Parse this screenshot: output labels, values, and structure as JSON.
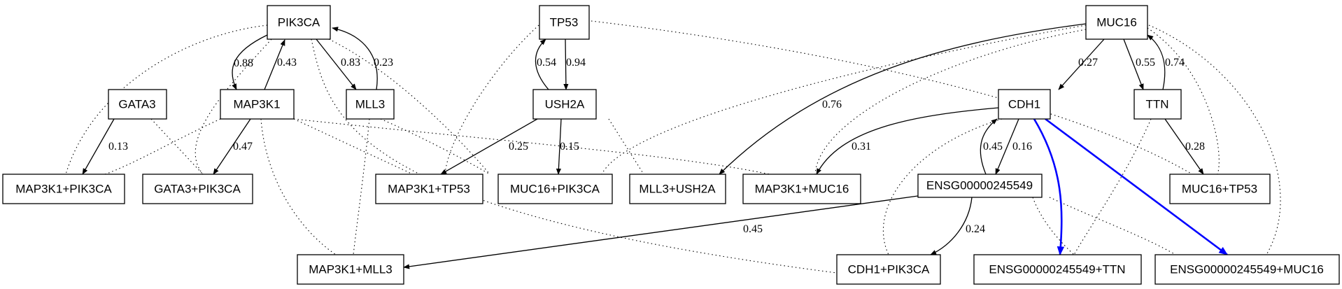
{
  "colors": {
    "highlight": "#0000ff",
    "default": "#000000"
  },
  "nodes": {
    "pik3ca": "PIK3CA",
    "tp53": "TP53",
    "muc16": "MUC16",
    "gata3": "GATA3",
    "map3k1": "MAP3K1",
    "mll3": "MLL3",
    "ush2a": "USH2A",
    "cdh1": "CDH1",
    "ttn": "TTN",
    "map3k1_pik3ca": "MAP3K1+PIK3CA",
    "gata3_pik3ca": "GATA3+PIK3CA",
    "map3k1_tp53": "MAP3K1+TP53",
    "muc16_pik3ca": "MUC16+PIK3CA",
    "mll3_ush2a": "MLL3+USH2A",
    "map3k1_muc16": "MAP3K1+MUC16",
    "ensg": "ENSG00000245549",
    "muc16_tp53": "MUC16+TP53",
    "map3k1_mll3": "MAP3K1+MLL3",
    "cdh1_pik3ca": "CDH1+PIK3CA",
    "ensg_ttn": "ENSG00000245549+TTN",
    "ensg_muc16": "ENSG00000245549+MUC16"
  },
  "edges": {
    "pik3ca_map3k1": "0.88",
    "map3k1_pik3ca": "0.43",
    "pik3ca_mll3": "0.83",
    "mll3_pik3ca": "0.23",
    "ush2a_tp53": "0.54",
    "tp53_ush2a": "0.94",
    "muc16_cdh1": "0.27",
    "muc16_ttn": "0.55",
    "ttn_muc16": "0.74",
    "muc16_map3k1muc16": "0.76",
    "gata3_map3k1pik3ca": "0.13",
    "map3k1_gata3pik3ca": "0.47",
    "ush2a_map3k1tp53": "0.25",
    "ush2a_muc16pik3ca": "0.15",
    "cdh1_map3k1muc16": "0.31",
    "ensg_cdh1": "0.45",
    "cdh1_ensg": "0.16",
    "ttn_muc16tp53": "0.28",
    "ensg_map3k1mll3": "0.45",
    "ensg_cdh1pik3ca": "0.24"
  }
}
